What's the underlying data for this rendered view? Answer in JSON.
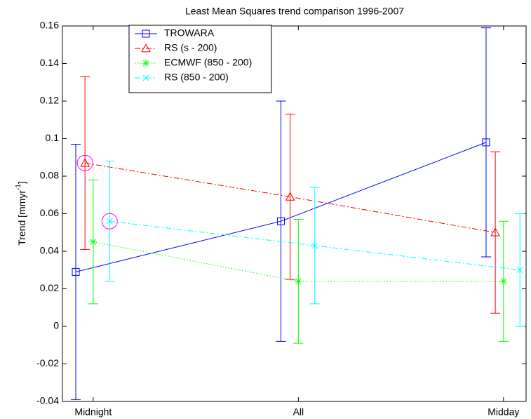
{
  "chart_data": {
    "type": "errorbar_line",
    "title": "Least Mean Squares trend comparison 1996-2007",
    "ylabel": {
      "text": "Trend [mmyr",
      "superscript": "-1",
      "suffix": "]"
    },
    "xlim": [
      0.85,
      3.11
    ],
    "xticks": [
      {
        "value": 1,
        "label": "Midnight"
      },
      {
        "value": 2,
        "label": "All"
      },
      {
        "value": 3,
        "label": "Midday"
      }
    ],
    "ylim": [
      -0.04,
      0.16
    ],
    "yticks": [
      -0.04,
      -0.02,
      0,
      0.02,
      0.04,
      0.06,
      0.08,
      0.1,
      0.12,
      0.14,
      0.16
    ],
    "legend": "top-left",
    "series": [
      {
        "name": "TROWARA",
        "color": "#0000ff",
        "linestyle": "solid",
        "marker": "square",
        "x": [
          0.915,
          1.915,
          2.915
        ],
        "values": [
          0.029,
          0.056,
          0.098
        ],
        "errors": [
          0.068,
          0.064,
          0.061
        ],
        "highlighted": []
      },
      {
        "name": "RS (s - 200)",
        "color": "#ff0000",
        "linestyle": "dashdot",
        "marker": "triangle",
        "x": [
          0.96,
          1.96,
          2.96
        ],
        "values": [
          0.087,
          0.069,
          0.05
        ],
        "errors": [
          0.046,
          0.044,
          0.043
        ],
        "highlighted": [
          0
        ]
      },
      {
        "name": "ECMWF (850 - 200)",
        "color": "#00ff00",
        "linestyle": "dotted",
        "marker": "asterisk",
        "x": [
          1,
          2,
          3
        ],
        "values": [
          0.045,
          0.024,
          0.024
        ],
        "errors": [
          0.033,
          0.033,
          0.032
        ],
        "highlighted": []
      },
      {
        "name": "RS (850 - 200)",
        "color": "#00ffff",
        "linestyle": "dashdot",
        "marker": "x",
        "x": [
          1.08,
          2.08,
          3.08
        ],
        "values": [
          0.056,
          0.043,
          0.03
        ],
        "errors": [
          0.032,
          0.031,
          0.03
        ],
        "highlighted": [
          0
        ]
      }
    ]
  }
}
